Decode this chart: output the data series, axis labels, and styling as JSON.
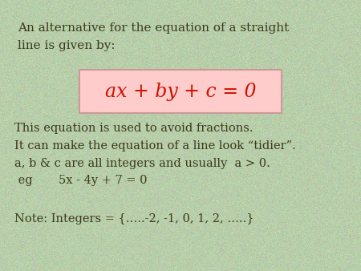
{
  "bg_color": "#b8ceaa",
  "text_color": "#3a3a1a",
  "red_color": "#cc1100",
  "box_bg": "#ffcccc",
  "box_edge": "#cc9999",
  "line1": "An alternative for the equation of a straight",
  "line2": "line is given by:",
  "formula": "ax + by + c = 0",
  "body_lines": [
    "This equation is used to avoid fractions.",
    "It can make the equation of a line look “tidier”.",
    "a, b & c are all integers and usually  a > 0.",
    " eg       5x - 4y + 7 = 0"
  ],
  "note_line": "Note: Integers = {…..-2, -1, 0, 1, 2, …..}"
}
